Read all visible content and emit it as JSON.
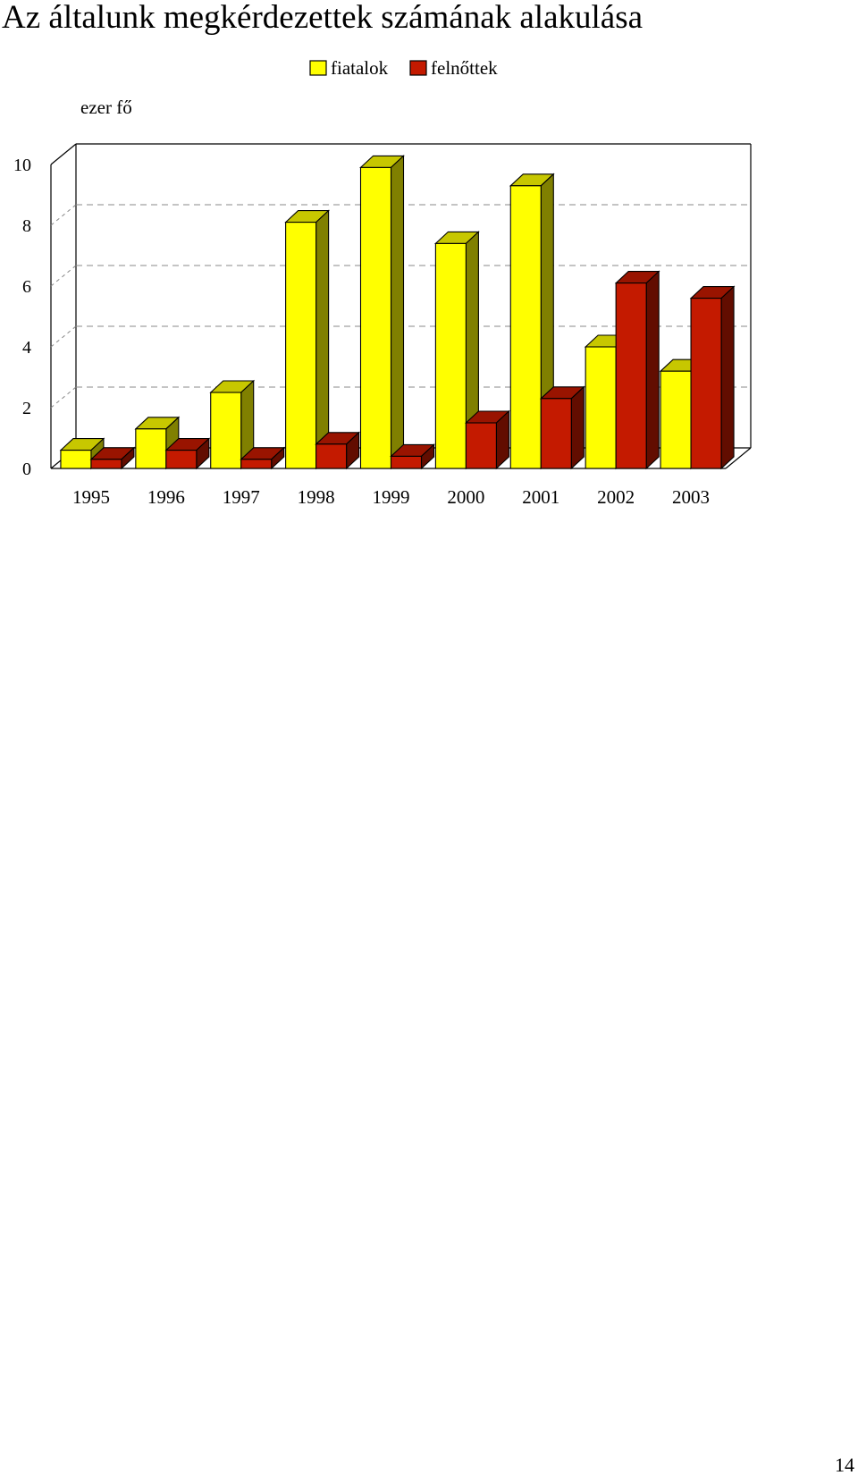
{
  "page": {
    "title": "Az általunk megkérdezettek számának alakulása",
    "page_number": "14"
  },
  "chart_data": {
    "type": "bar",
    "title": "",
    "ylabel": "ezer fő",
    "xlabel": "",
    "categories": [
      "1995",
      "1996",
      "1997",
      "1998",
      "1999",
      "2000",
      "2001",
      "2002",
      "2003"
    ],
    "series": [
      {
        "name": "fiatalok",
        "color": "#ffff00",
        "values": [
          0.6,
          1.3,
          2.5,
          8.1,
          9.9,
          7.4,
          9.3,
          4.0,
          3.2
        ]
      },
      {
        "name": "felnőttek",
        "color": "#c41a00",
        "values": [
          0.3,
          0.6,
          0.3,
          0.8,
          0.4,
          1.5,
          2.3,
          6.1,
          5.6
        ]
      }
    ],
    "ylim": [
      0,
      10
    ],
    "yticks": [
      "0",
      "2",
      "4",
      "6",
      "8",
      "10"
    ],
    "grid": true,
    "legend_position": "top",
    "style": "3d-clustered-column"
  }
}
